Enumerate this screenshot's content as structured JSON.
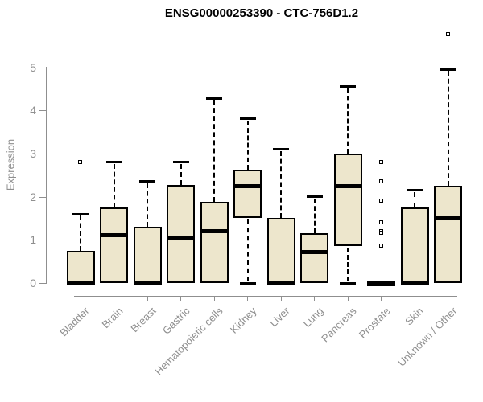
{
  "chart_data": {
    "type": "boxplot",
    "title": "ENSG00000253390 - CTC-756D1.2",
    "ylabel": "Expression",
    "xlabel": "",
    "ylim": [
      0,
      5.9
    ],
    "yticks": [
      0,
      1,
      2,
      3,
      4,
      5
    ],
    "grid": false,
    "legend": "none",
    "categories": [
      "Bladder",
      "Brain",
      "Breast",
      "Gastric",
      "Hematopoietic cells",
      "Kidney",
      "Liver",
      "Lung",
      "Pancreas",
      "Prostate",
      "Skin",
      "Unknown / Other"
    ],
    "series": [
      {
        "category": "Bladder",
        "q1": 0,
        "median": 0,
        "q3": 0.75,
        "whisker_low": 0,
        "whisker_high": 1.6,
        "outliers": [
          2.8
        ]
      },
      {
        "category": "Brain",
        "q1": 0,
        "median": 1.1,
        "q3": 1.75,
        "whisker_low": 0,
        "whisker_high": 2.8,
        "outliers": []
      },
      {
        "category": "Breast",
        "q1": 0,
        "median": 0,
        "q3": 1.3,
        "whisker_low": 0,
        "whisker_high": 2.35,
        "outliers": []
      },
      {
        "category": "Gastric",
        "q1": 0,
        "median": 1.05,
        "q3": 2.28,
        "whisker_low": 0,
        "whisker_high": 2.8,
        "outliers": []
      },
      {
        "category": "Hematopoietic cells",
        "q1": 0,
        "median": 1.2,
        "q3": 1.88,
        "whisker_low": 0,
        "whisker_high": 4.28,
        "outliers": []
      },
      {
        "category": "Kidney",
        "q1": 1.5,
        "median": 2.25,
        "q3": 2.62,
        "whisker_low": 0,
        "whisker_high": 3.8,
        "outliers": []
      },
      {
        "category": "Liver",
        "q1": 0,
        "median": 0,
        "q3": 1.5,
        "whisker_low": 0,
        "whisker_high": 3.1,
        "outliers": []
      },
      {
        "category": "Lung",
        "q1": 0,
        "median": 0.72,
        "q3": 1.15,
        "whisker_low": 0,
        "whisker_high": 2.0,
        "outliers": []
      },
      {
        "category": "Pancreas",
        "q1": 0.85,
        "median": 2.25,
        "q3": 3.0,
        "whisker_low": 0,
        "whisker_high": 4.55,
        "outliers": []
      },
      {
        "category": "Prostate",
        "q1": 0,
        "median": 0,
        "q3": 0,
        "whisker_low": 0,
        "whisker_high": 0,
        "outliers": [
          2.8,
          2.35,
          1.9,
          1.4,
          1.2,
          1.15,
          0.85
        ]
      },
      {
        "category": "Skin",
        "q1": 0,
        "median": 0,
        "q3": 1.75,
        "whisker_low": 0,
        "whisker_high": 2.15,
        "outliers": []
      },
      {
        "category": "Unknown / Other",
        "q1": 0,
        "median": 1.5,
        "q3": 2.25,
        "whisker_low": 0,
        "whisker_high": 4.95,
        "outliers": [
          5.75
        ]
      }
    ],
    "colors": {
      "box_fill": "#ede6cc",
      "box_border": "#000000",
      "median": "#000000",
      "axis": "#8f8f8f",
      "title": "#000000",
      "background": "#ffffff"
    }
  }
}
